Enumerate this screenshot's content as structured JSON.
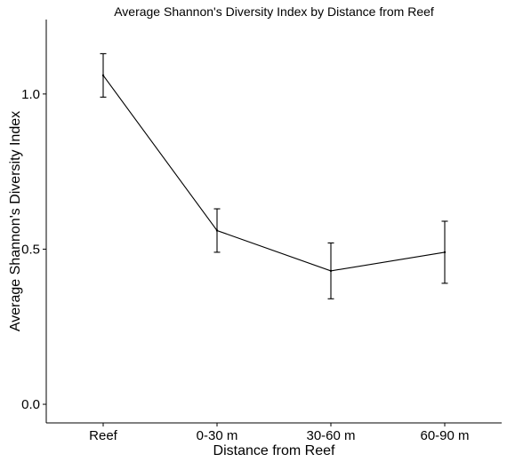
{
  "chart_data": {
    "type": "line",
    "title": "Average Shannon's Diversity Index by Distance from Reef",
    "xlabel": "Distance from Reef",
    "ylabel": "Average Shannon's Diversity Index",
    "categories": [
      "Reef",
      "0-30 m",
      "30-60 m",
      "60-90 m"
    ],
    "series": [
      {
        "values": [
          1.06,
          0.56,
          0.43,
          0.49
        ],
        "error_low": [
          0.99,
          0.49,
          0.34,
          0.39
        ],
        "error_high": [
          1.13,
          0.63,
          0.52,
          0.59
        ]
      }
    ],
    "yticks": [
      0.0,
      0.5,
      1.0
    ],
    "ytick_labels": [
      "0.0",
      "0.5",
      "1.0"
    ],
    "ylim": [
      -0.06,
      1.24
    ],
    "grid": false,
    "legend": "none",
    "color": "#000000"
  }
}
